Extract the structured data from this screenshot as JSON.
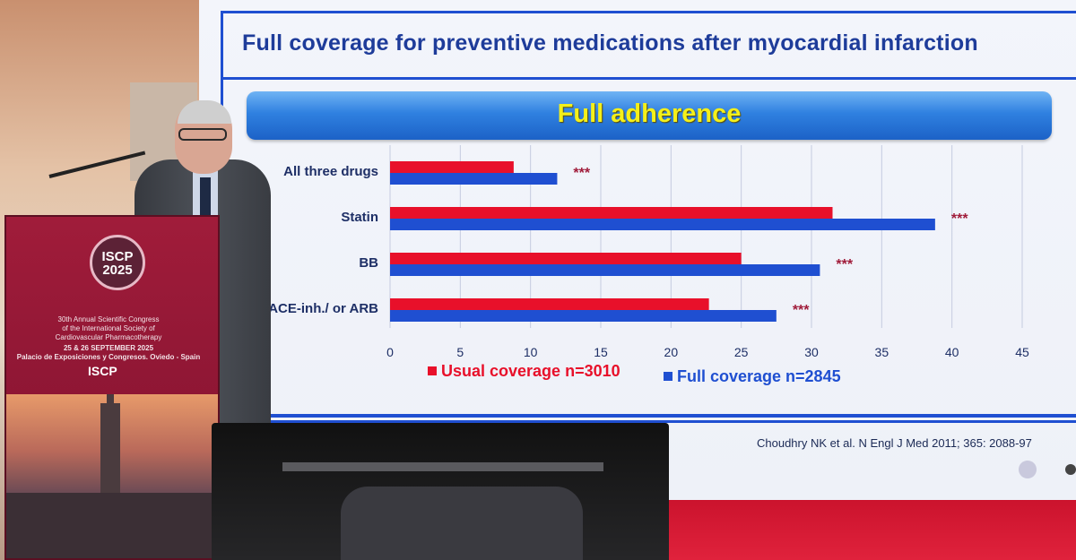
{
  "slide": {
    "title": "Full coverage for preventive medications after myocardial infarction",
    "banner": "Full adherence",
    "citation": "Choudhry NK et al. N Engl J Med 2011; 365: 2088-97"
  },
  "podium": {
    "logo_line1": "ISCP",
    "logo_line2": "2025",
    "line1": "30th Annual Scientific Congress",
    "line2": "of the International Society of",
    "line3": "Cardiovascular Pharmacotherapy",
    "dates": "25 & 26 SEPTEMBER 2025",
    "venue": "Palacio de Exposiciones y Congresos. Oviedo - Spain",
    "small_logo": "ISCP"
  },
  "colors": {
    "usual": "#e8102a",
    "full": "#1f4fd1",
    "stars": "#a01c3a",
    "axis_text": "#1e2f66",
    "grid": "#c5cbe0"
  },
  "chart_data": {
    "type": "bar",
    "orientation": "horizontal",
    "title": "Full adherence",
    "categories": [
      "All three drugs",
      "Statin",
      "BB",
      "ACE-inh./ or ARB"
    ],
    "series": [
      {
        "name": "Usual coverage n=3010",
        "values": [
          8.8,
          31.5,
          25,
          22.7
        ]
      },
      {
        "name": "Full coverage n=2845",
        "values": [
          11.9,
          38.8,
          30.6,
          27.5
        ]
      }
    ],
    "significance": [
      "***",
      "***",
      "***",
      "***"
    ],
    "xlim": [
      0,
      45
    ],
    "xticks": [
      "0",
      "5",
      "10",
      "15",
      "20",
      "25",
      "30",
      "35",
      "40",
      "45"
    ],
    "grid": true,
    "legend": "bottom"
  }
}
